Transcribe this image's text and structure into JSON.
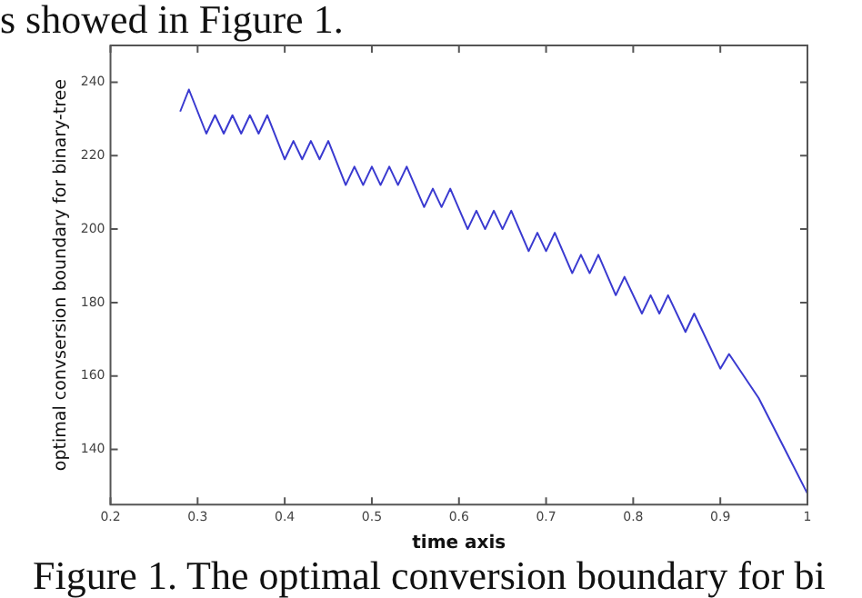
{
  "chart_data": {
    "type": "line",
    "xlabel": "time axis",
    "ylabel": "optimal convsersion boundary for binary-tree",
    "annotations": [
      "s showed in Figure 1.",
      "Figure 1. The optimal conversion boundary for bi"
    ],
    "x": [
      0.28,
      0.29,
      0.31,
      0.32,
      0.33,
      0.34,
      0.35,
      0.36,
      0.37,
      0.38,
      0.4,
      0.41,
      0.42,
      0.43,
      0.44,
      0.45,
      0.47,
      0.48,
      0.49,
      0.5,
      0.51,
      0.52,
      0.53,
      0.54,
      0.56,
      0.57,
      0.58,
      0.59,
      0.61,
      0.62,
      0.63,
      0.64,
      0.65,
      0.66,
      0.68,
      0.69,
      0.7,
      0.71,
      0.73,
      0.74,
      0.75,
      0.76,
      0.78,
      0.79,
      0.81,
      0.82,
      0.83,
      0.84,
      0.86,
      0.87,
      0.9,
      0.91,
      0.944,
      0.972,
      1.0
    ],
    "series": [
      {
        "color": "#3a3ad0",
        "values": [
          232,
          238,
          226,
          231,
          226,
          231,
          226,
          231,
          226,
          231,
          219,
          224,
          219,
          224,
          219,
          224,
          212,
          217,
          212,
          217,
          212,
          217,
          212,
          217,
          206,
          211,
          206,
          211,
          200,
          205,
          200,
          205,
          200,
          205,
          194,
          199,
          194,
          199,
          188,
          193,
          188,
          193,
          182,
          187,
          177,
          182,
          177,
          182,
          172,
          177,
          162,
          166,
          154,
          141,
          128
        ]
      }
    ],
    "xlim": [
      0.2,
      1
    ],
    "ylim": [
      125,
      250
    ],
    "xticks": [
      0.2,
      0.3,
      0.4,
      0.5,
      0.6,
      0.7,
      0.8,
      0.9,
      1
    ],
    "yticks": [
      140,
      160,
      180,
      200,
      220,
      240
    ],
    "grid": false,
    "legend": false,
    "marker": "none",
    "line_style": "solid"
  }
}
